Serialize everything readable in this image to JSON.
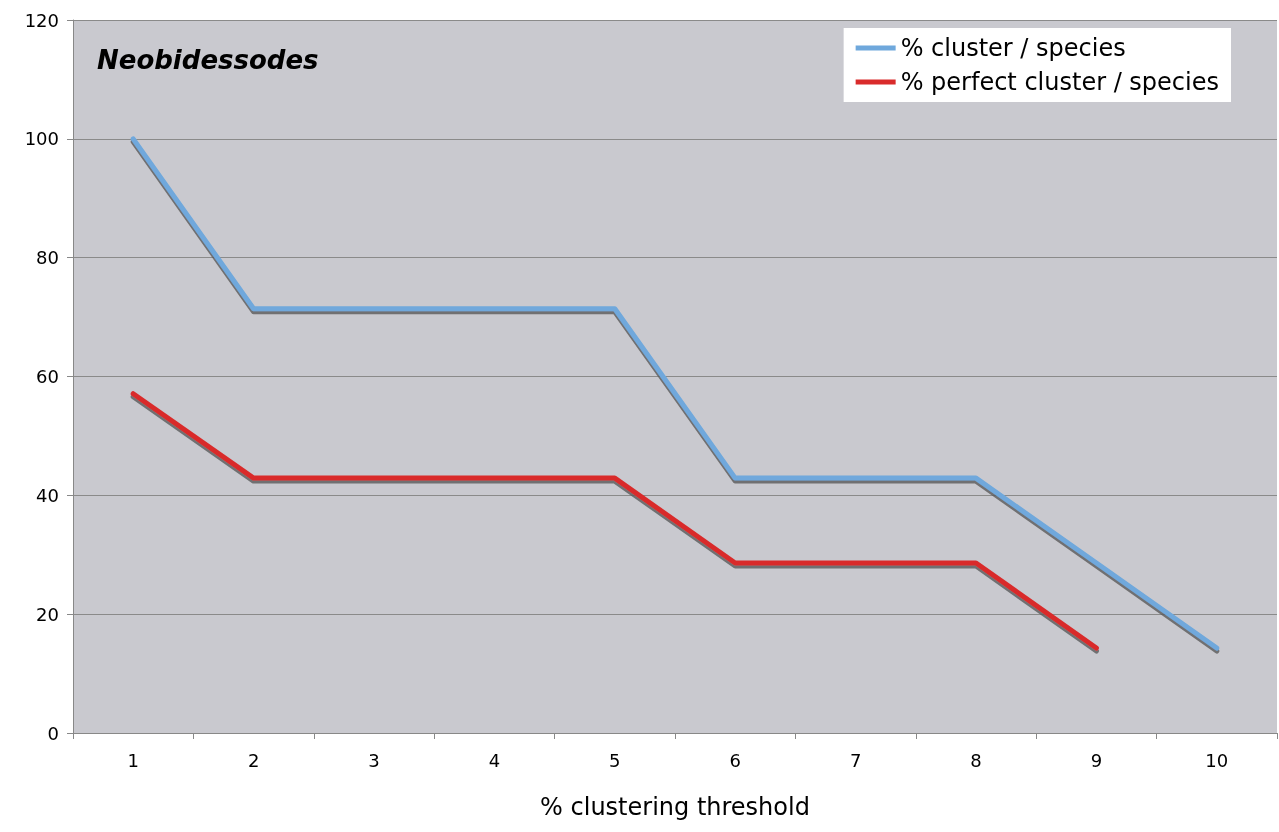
{
  "chart_data": {
    "type": "line",
    "title": "Neobidessodes",
    "xlabel": "% clustering threshold",
    "categories": [
      "1",
      "2",
      "3",
      "4",
      "5",
      "6",
      "7",
      "8",
      "9",
      "10"
    ],
    "series": [
      {
        "name": "% cluster / species",
        "color": "#6fa8dc",
        "values": [
          100,
          71.4,
          71.4,
          71.4,
          71.4,
          42.9,
          42.9,
          42.9,
          28.6,
          14.3
        ]
      },
      {
        "name": "% perfect cluster / species",
        "color": "#d92b2b",
        "values": [
          57.1,
          42.9,
          42.9,
          42.9,
          42.9,
          28.6,
          28.6,
          28.6,
          14.3,
          null
        ]
      }
    ],
    "ylim": [
      0,
      120
    ],
    "yticks": [
      0,
      20,
      40,
      60,
      80,
      100,
      120
    ],
    "grid": "y",
    "legend": "top right",
    "marker": "none",
    "line_style": "solid"
  }
}
